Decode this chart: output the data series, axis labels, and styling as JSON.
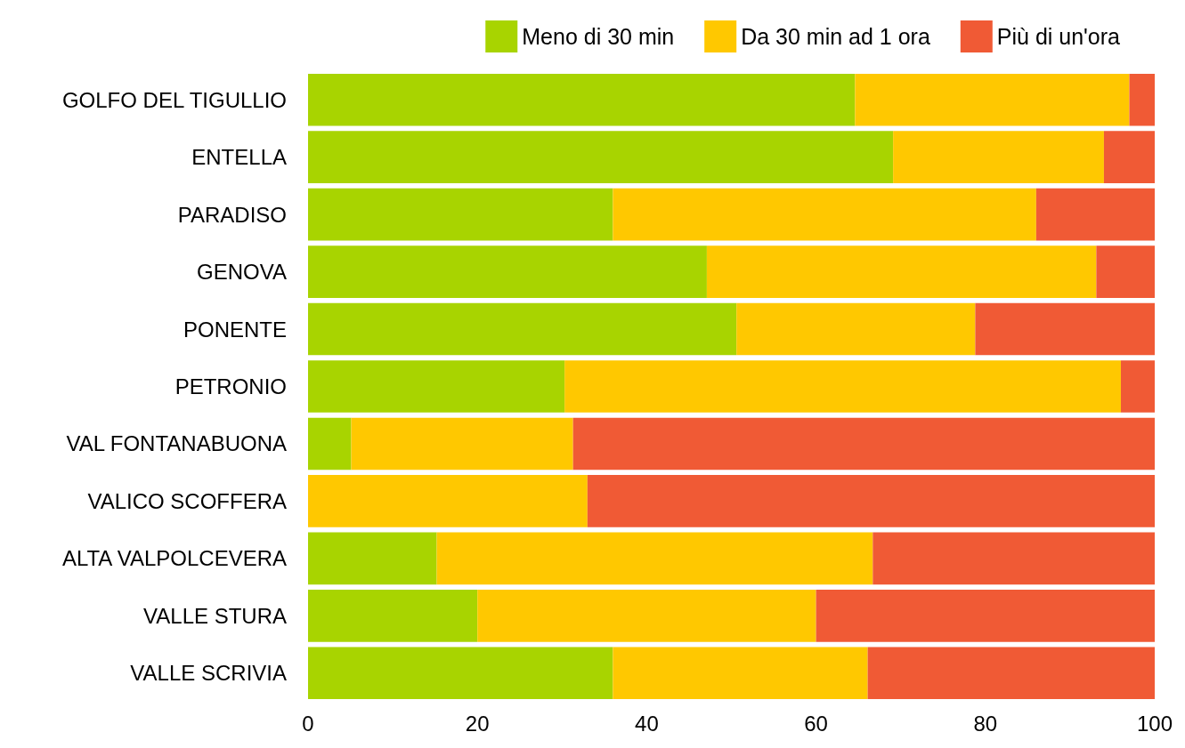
{
  "chart_data": {
    "type": "bar",
    "orientation": "horizontal",
    "stacked": true,
    "legend": "top right",
    "grid": false,
    "categories": [
      "GOLFO DEL TIGULLIO",
      "ENTELLA",
      "PARADISO",
      "GENOVA",
      "PONENTE",
      "PETRONIO",
      "VAL FONTANABUONA",
      "VALICO SCOFFERA",
      "ALTA VALPOLCEVERA",
      "VALLE STURA",
      "VALLE SCRIVIA"
    ],
    "series": [
      {
        "name": "Meno di 30 min",
        "color": "#a8d400",
        "values": [
          64.6,
          69.1,
          36.0,
          47.1,
          50.6,
          30.3,
          5.1,
          0,
          15.2,
          20.0,
          36.0
        ]
      },
      {
        "name": "Da 30 min ad 1 ora",
        "color": "#ffc800",
        "values": [
          32.4,
          24.9,
          50.0,
          46.0,
          28.2,
          65.7,
          26.2,
          33.0,
          51.5,
          40.0,
          30.1
        ]
      },
      {
        "name": "Più di un'ora",
        "color": "#f05a35",
        "values": [
          3.0,
          6.0,
          14.0,
          6.9,
          21.2,
          4.0,
          68.7,
          67.0,
          33.3,
          40.0,
          33.9
        ]
      }
    ],
    "xlim": [
      0,
      100
    ],
    "xticks": [
      0,
      20,
      40,
      60,
      80,
      100
    ]
  }
}
